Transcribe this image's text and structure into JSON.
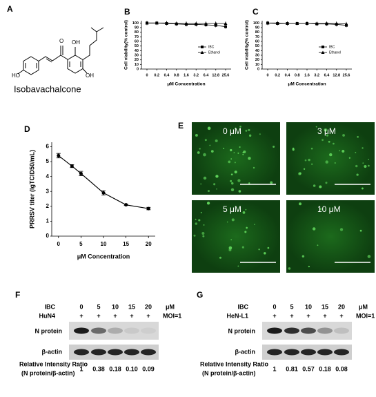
{
  "panel_labels": [
    "A",
    "B",
    "C",
    "D",
    "E",
    "F",
    "G"
  ],
  "structure": {
    "name": "Isobavachalcone",
    "atoms": [
      "HO",
      "O",
      "OH",
      "OH"
    ]
  },
  "chart_data": [
    {
      "type": "line",
      "ylabel": "Cell viability(% control)",
      "xlabel": "μM Concentration",
      "categories": [
        "0",
        "0.2",
        "0.4",
        "0.8",
        "1.6",
        "3.2",
        "6.4",
        "12.8",
        "25.6"
      ],
      "series": [
        {
          "name": "IBC",
          "color": "#000000",
          "marker": "square",
          "values": [
            100,
            100,
            99,
            98,
            97,
            97,
            96,
            95,
            92
          ]
        },
        {
          "name": "Ethanol",
          "color": "#000000",
          "marker": "triangle",
          "values": [
            100,
            100,
            100,
            99,
            99,
            99,
            99,
            99,
            99
          ]
        }
      ],
      "ylim": [
        0,
        105
      ],
      "yticks": [
        0,
        10,
        20,
        30,
        40,
        50,
        60,
        70,
        80,
        90,
        100
      ]
    },
    {
      "type": "line",
      "ylabel": "Cell viability(% control)",
      "xlabel": "μM Concentration",
      "categories": [
        "0",
        "0.2",
        "0.4",
        "0.8",
        "1.6",
        "3.2",
        "6.4",
        "12.8",
        "25.6"
      ],
      "series": [
        {
          "name": "IBC",
          "color": "#000000",
          "marker": "square",
          "values": [
            100,
            99,
            99,
            99,
            99,
            98,
            98,
            97,
            95
          ]
        },
        {
          "name": "Ethanol",
          "color": "#000000",
          "marker": "triangle",
          "values": [
            100,
            100,
            99,
            99,
            99,
            99,
            99,
            99,
            98
          ]
        }
      ],
      "ylim": [
        0,
        105
      ],
      "yticks": [
        0,
        10,
        20,
        30,
        40,
        50,
        60,
        70,
        80,
        90,
        100
      ]
    },
    {
      "type": "errorline",
      "ylabel": "PRRSV titer (lgTCID50/mL)",
      "xlabel": "μM Concentration",
      "x": [
        0,
        3,
        5,
        10,
        15,
        20
      ],
      "values": [
        5.4,
        4.7,
        4.2,
        2.9,
        2.1,
        1.85
      ],
      "errors": [
        0.15,
        0.1,
        0.15,
        0.15,
        0.05,
        0.08
      ],
      "color": "#000000",
      "xlim": [
        -1.5,
        21.5
      ],
      "xticks": [
        0,
        5,
        10,
        15,
        20
      ],
      "ylim": [
        0,
        6.3
      ],
      "yticks": [
        0,
        1,
        2,
        3,
        4,
        5,
        6
      ]
    }
  ],
  "images": [
    {
      "label": "0 μM"
    },
    {
      "label": "3 μM"
    },
    {
      "label": "5 μM"
    },
    {
      "label": "10 μM"
    }
  ],
  "blots": [
    {
      "treatment": "IBC",
      "doses": [
        "0",
        "5",
        "10",
        "15",
        "20"
      ],
      "unit": "μM",
      "virus": "HuN4",
      "signs": [
        "+",
        "+",
        "+",
        "+",
        "+"
      ],
      "moi": "MOI=1",
      "proteins": [
        "N protein",
        "β-actin"
      ],
      "ratio_label": [
        "Relative Intensity Ratio",
        "(N protein/β-actin)"
      ],
      "ratios": [
        "1",
        "0.38",
        "0.18",
        "0.10",
        "0.09"
      ]
    },
    {
      "treatment": "IBC",
      "doses": [
        "0",
        "5",
        "10",
        "15",
        "20"
      ],
      "unit": "μM",
      "virus": "HeN-L1",
      "signs": [
        "+",
        "+",
        "+",
        "+",
        "+"
      ],
      "moi": "MOI=1",
      "proteins": [
        "N protein",
        "β-actin"
      ],
      "ratio_label": [
        "Relative Intensity Ratio",
        "(N protein/β-actin)"
      ],
      "ratios": [
        "1",
        "0.81",
        "0.57",
        "0.18",
        "0.08"
      ]
    }
  ]
}
